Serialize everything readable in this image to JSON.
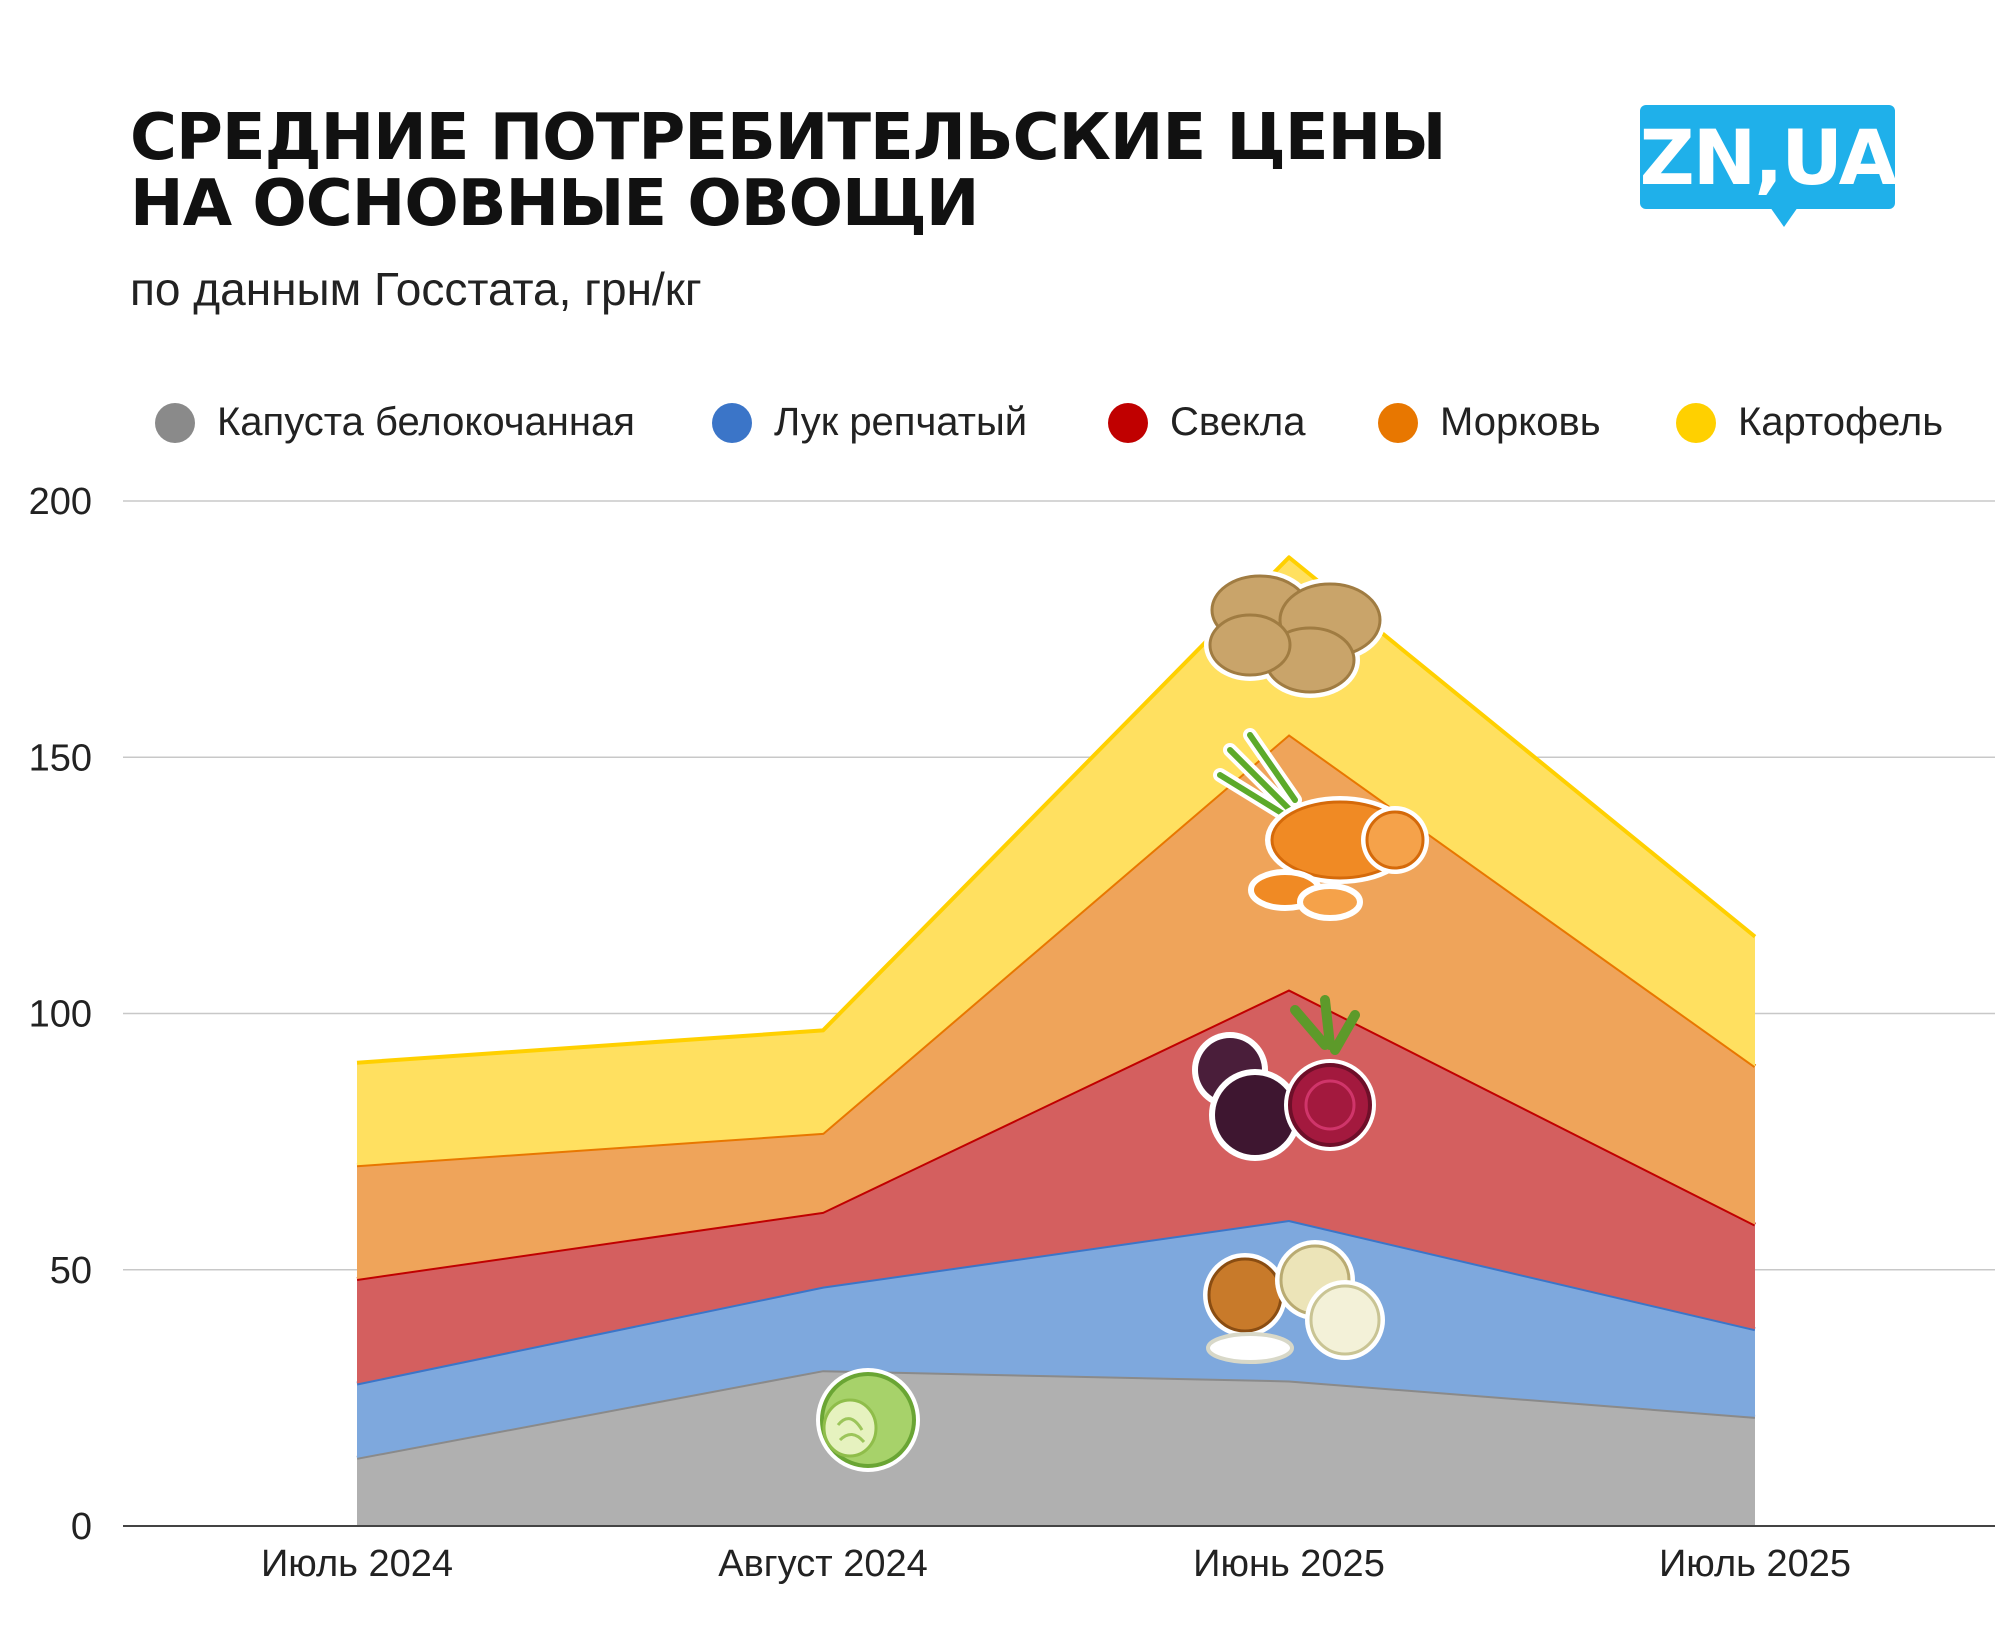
{
  "header": {
    "title_line1": "СРЕДНИЕ ПОТРЕБИТЕЛЬСКИЕ ЦЕНЫ",
    "title_line2": "НА ОСНОВНЫЕ ОВОЩИ",
    "subtitle": "по данным Госстата, грн/кг",
    "logo_text": "ZN,UA"
  },
  "colors": {
    "logo": "#1fb0ea"
  },
  "chart_data": {
    "type": "area",
    "stacked": true,
    "title": "СРЕДНИЕ ПОТРЕБИТЕЛЬСКИЕ ЦЕНЫ НА ОСНОВНЫЕ ОВОЩИ",
    "subtitle": "по данным Госстата, грн/кг",
    "categories": [
      "Июль 2024",
      "Август 2024",
      "Июнь 2025",
      "Июль 2025"
    ],
    "yticks": [
      0,
      50,
      100,
      150,
      200
    ],
    "ylim": [
      0,
      200
    ],
    "grid": true,
    "legend_position": "top",
    "series": [
      {
        "name": "Капуста белокочанная",
        "values": [
          13.3,
          30.4,
          28.4,
          21.3
        ],
        "fill": "#b0b0b0",
        "stroke": "#8a8a8a",
        "dot": "#8a8a8a",
        "icon": "cabbage-icon"
      },
      {
        "name": "Лук репчатый",
        "values": [
          14.5,
          16.3,
          31.3,
          17.1
        ],
        "fill": "#7ea8dd",
        "stroke": "#3b75c8",
        "dot": "#3b75c8",
        "icon": "onion-icon"
      },
      {
        "name": "Свекла",
        "values": [
          20.4,
          14.6,
          45.0,
          20.4
        ],
        "fill": "#d45f5f",
        "stroke": "#c00000",
        "dot": "#c00000",
        "icon": "beet-icon"
      },
      {
        "name": "Морковь",
        "values": [
          22.2,
          15.4,
          49.8,
          30.9
        ],
        "fill": "#efa45a",
        "stroke": "#e87700",
        "dot": "#e87700",
        "icon": "carrot-icon"
      },
      {
        "name": "Картофель",
        "values": [
          20.0,
          20.0,
          34.5,
          25.3
        ],
        "fill": "#ffe060",
        "stroke": "#ffd000",
        "dot": "#ffd000",
        "icon": "potato-icon"
      }
    ]
  }
}
